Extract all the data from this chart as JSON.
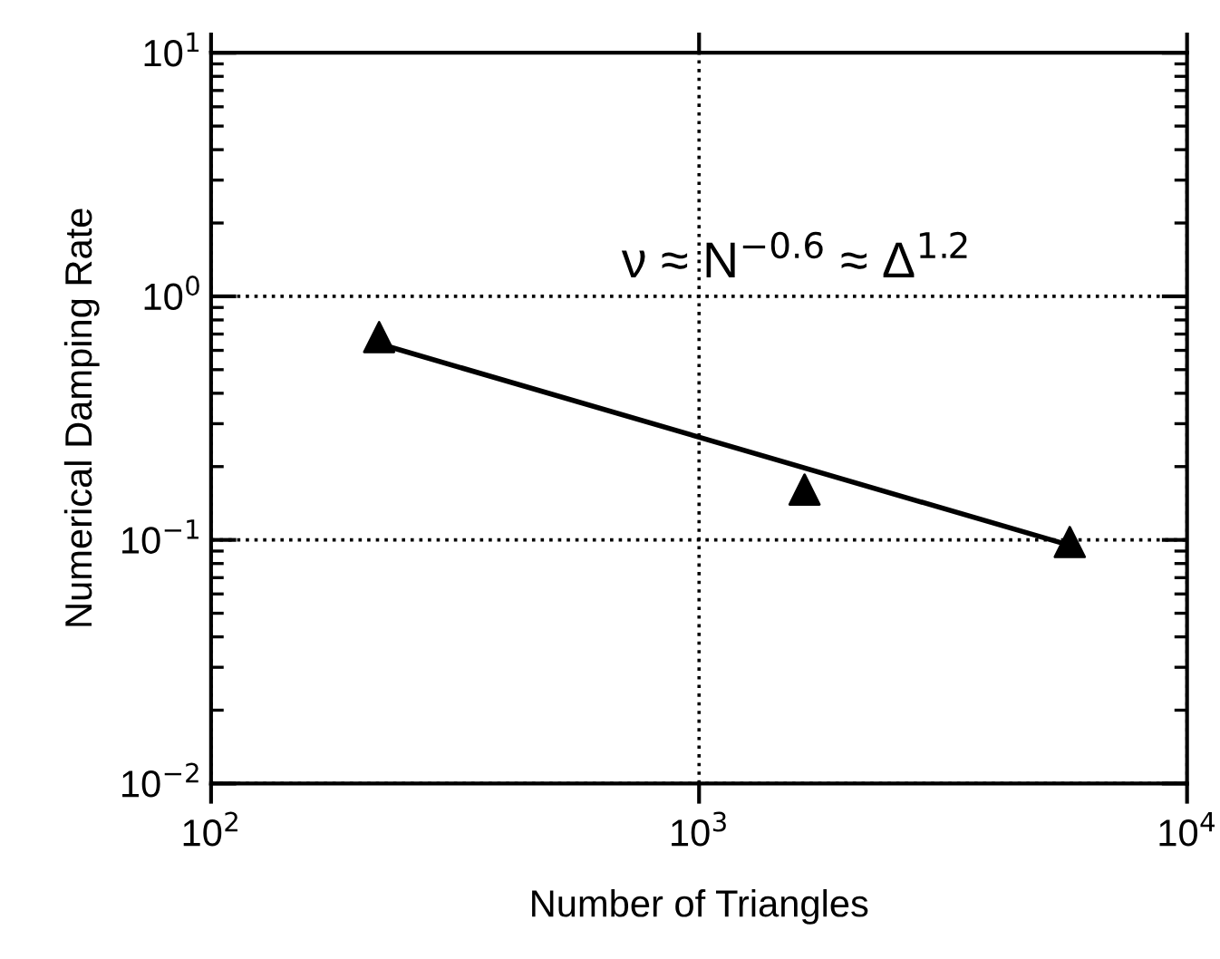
{
  "chart_data": {
    "type": "scatter",
    "xlabel": "Number of Triangles",
    "ylabel": "Numerical Damping Rate",
    "log": "xy",
    "grid": true,
    "marker": "triangle",
    "xlim": [
      100,
      10000
    ],
    "ylim": [
      0.01,
      10
    ],
    "xticks": [
      {
        "value": 100,
        "label": "10$^{2}$"
      },
      {
        "value": 1000,
        "label": "10$^{3}$"
      },
      {
        "value": 10000,
        "label": "10$^{4}$"
      }
    ],
    "yticks": [
      {
        "value": 0.01,
        "label": "10$^{−2}$"
      },
      {
        "value": 0.1,
        "label": "10$^{−1}$"
      },
      {
        "value": 1,
        "label": "10$^{0}$"
      },
      {
        "value": 10,
        "label": "10$^{1}$"
      }
    ],
    "series": [
      {
        "color": "#000000",
        "x": [
          221,
          1645,
          5750
        ],
        "values": [
          0.68,
          0.161,
          0.098
        ]
      },
      {
        "type": "line",
        "color": "#000000",
        "line_style": "solid",
        "x": [
          220,
          5750
        ],
        "values": [
          0.64,
          0.095
        ]
      }
    ],
    "annotations": [
      "ν ≈ N$^{−0.6}$ ≈ Δ$^{1.2}$"
    ]
  }
}
